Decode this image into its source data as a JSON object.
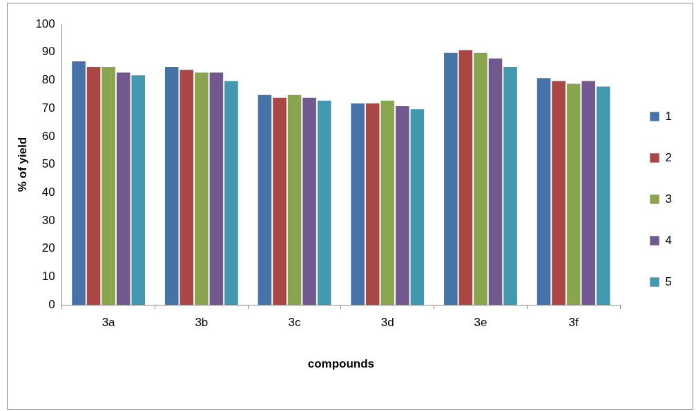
{
  "chart_data": {
    "type": "bar",
    "xlabel": "compounds",
    "ylabel": "% of yield",
    "categories": [
      "3a",
      "3b",
      "3c",
      "3d",
      "3e",
      "3f"
    ],
    "series": [
      {
        "name": "1",
        "color": "#4572a7",
        "values": [
          87,
          85,
          75,
          72,
          90,
          81
        ]
      },
      {
        "name": "2",
        "color": "#aa4643",
        "values": [
          85,
          84,
          74,
          72,
          91,
          80
        ]
      },
      {
        "name": "3",
        "color": "#89a54e",
        "values": [
          85,
          83,
          75,
          73,
          90,
          79
        ]
      },
      {
        "name": "4",
        "color": "#71588f",
        "values": [
          83,
          83,
          74,
          71,
          88,
          80
        ]
      },
      {
        "name": "5",
        "color": "#4198af",
        "values": [
          82,
          80,
          73,
          70,
          85,
          78
        ]
      }
    ],
    "ylim": [
      0,
      100
    ],
    "yticks": [
      0,
      10,
      20,
      30,
      40,
      50,
      60,
      70,
      80,
      90,
      100
    ],
    "grid": false,
    "legend": "right"
  }
}
